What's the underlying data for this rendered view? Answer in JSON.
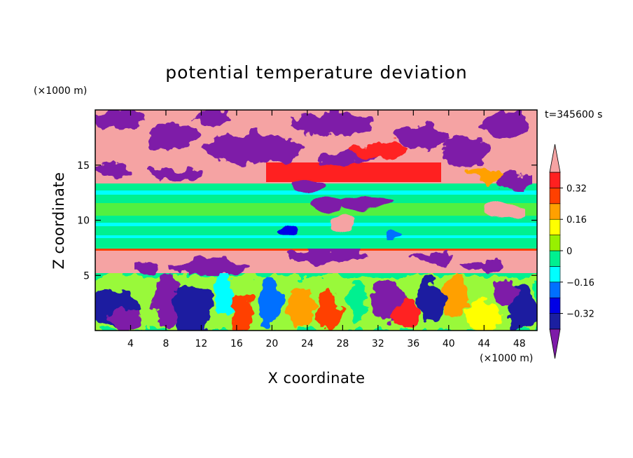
{
  "chart_data": {
    "type": "heatmap",
    "title": "potential temperature deviation",
    "xlabel": "X coordinate",
    "ylabel": "Z coordinate",
    "x_unit": "(×1000 m)",
    "y_unit": "(×1000 m)",
    "time_label": "t=345600 s",
    "xlim": [
      0,
      50
    ],
    "ylim": [
      0,
      20
    ],
    "x_ticks": [
      4,
      8,
      12,
      16,
      20,
      24,
      28,
      32,
      36,
      40,
      44,
      48
    ],
    "y_ticks": [
      5,
      10,
      15
    ],
    "colorbar": {
      "levels": [
        -0.4,
        -0.32,
        -0.24,
        -0.16,
        -0.08,
        0,
        0.08,
        0.16,
        0.24,
        0.32,
        0.4
      ],
      "labeled_ticks": [
        "0.32",
        "0.16",
        "0",
        "−0.16",
        "−0.32"
      ],
      "labeled_values": [
        0.32,
        0.16,
        0,
        -0.16,
        -0.32
      ],
      "colors": [
        "#7e1ba8",
        "#1b1fa0",
        "#0000e6",
        "#0070ff",
        "#00ffff",
        "#00f090",
        "#98f000",
        "#ffff00",
        "#ffa000",
        "#ff4000",
        "#ff2020",
        "#f5a3a3"
      ],
      "extend": "both"
    },
    "layers": [
      {
        "z_range": [
          0,
          4.5
        ],
        "pattern": "vertical plumes, mixed",
        "dominant": [
          -0.32,
          0.24
        ]
      },
      {
        "z_range": [
          4.5,
          7.2
        ],
        "pattern": "mostly pink with purple patches",
        "dominant": [
          0.4,
          -0.4
        ]
      },
      {
        "z_range": [
          7.2,
          12.5
        ],
        "pattern": "horizontal green/cyan bands",
        "dominant": [
          0,
          -0.08
        ]
      },
      {
        "z_range": [
          12.5,
          15.5
        ],
        "pattern": "red/orange band with purple blobs",
        "dominant": [
          0.32,
          -0.4
        ]
      },
      {
        "z_range": [
          15.5,
          20
        ],
        "pattern": "pink and purple blobs",
        "dominant": [
          0.4,
          -0.4
        ]
      }
    ]
  }
}
